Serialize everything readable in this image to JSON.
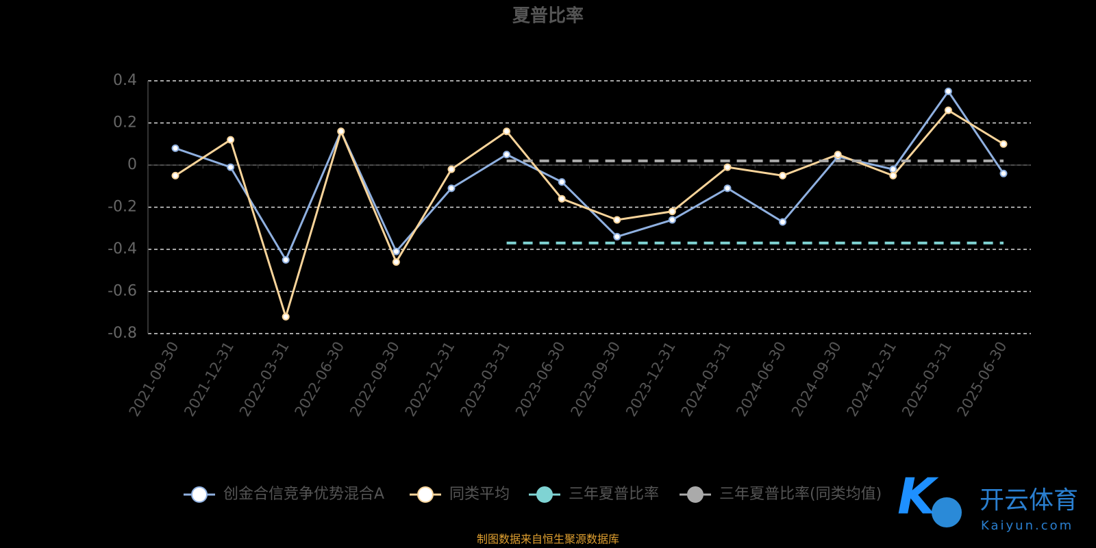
{
  "chart_data": {
    "type": "line",
    "title": "夏普比率",
    "categories": [
      "2021-09-30",
      "2021-12-31",
      "2022-03-31",
      "2022-06-30",
      "2022-09-30",
      "2022-12-31",
      "2023-03-31",
      "2023-06-30",
      "2023-09-30",
      "2023-12-31",
      "2024-03-31",
      "2024-06-30",
      "2024-09-30",
      "2024-12-31",
      "2025-03-31",
      "2025-06-30"
    ],
    "series": [
      {
        "name": "创金合信竞争优势混合A",
        "color": "#8fb0e0",
        "values": [
          0.08,
          -0.01,
          -0.45,
          0.16,
          -0.41,
          -0.11,
          0.05,
          -0.08,
          -0.34,
          -0.26,
          -0.11,
          -0.27,
          0.04,
          -0.02,
          0.35,
          -0.04
        ]
      },
      {
        "name": "同类平均",
        "color": "#f8d49a",
        "values": [
          -0.05,
          0.12,
          -0.72,
          0.16,
          -0.46,
          -0.02,
          0.16,
          -0.16,
          -0.26,
          -0.22,
          -0.01,
          -0.05,
          0.05,
          -0.05,
          0.26,
          0.1
        ]
      },
      {
        "name": "三年夏普比率",
        "color": "#7fd3d3",
        "dashed": true,
        "values": [
          null,
          null,
          null,
          null,
          null,
          null,
          -0.37,
          -0.37,
          -0.37,
          -0.37,
          -0.37,
          -0.37,
          -0.37,
          -0.37,
          -0.37,
          -0.37
        ]
      },
      {
        "name": "三年夏普比率(同类均值)",
        "color": "#aaaaaa",
        "dashed": true,
        "values": [
          null,
          null,
          null,
          null,
          null,
          null,
          0.02,
          0.02,
          0.02,
          0.02,
          0.02,
          0.02,
          0.02,
          0.02,
          0.02,
          0.02
        ]
      }
    ],
    "ylim": [
      -0.8,
      0.4
    ],
    "yticks": [
      -0.8,
      -0.6,
      -0.4,
      -0.2,
      0,
      0.2,
      0.4
    ],
    "grid": true,
    "legend": "bottom",
    "source": "制图数据来自恒生聚源数据库"
  },
  "watermark": {
    "title": "开云体育",
    "url": "Kaiyun.com"
  }
}
